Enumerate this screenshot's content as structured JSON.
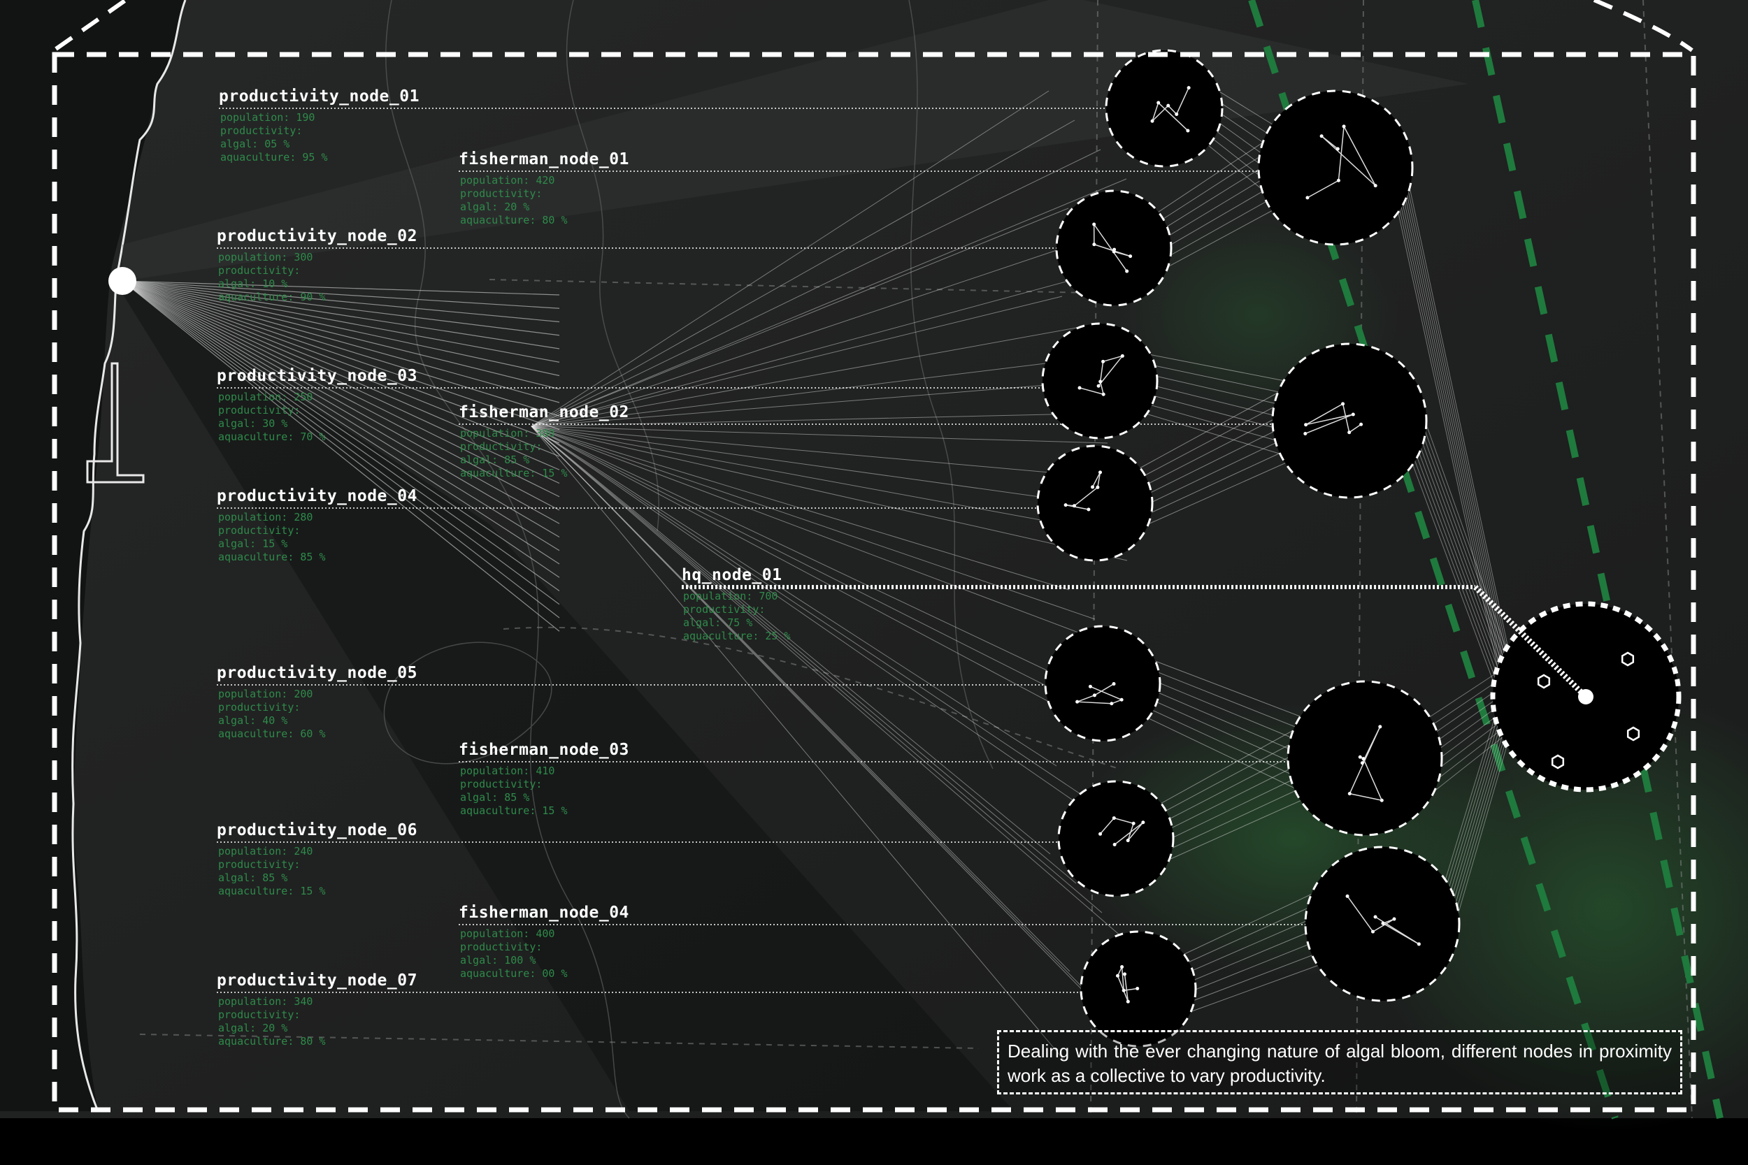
{
  "colors": {
    "background": "#000000",
    "map_dark": "#1e1f1f",
    "accent_green": "#1f7a3d",
    "stats_green": "#2e8b4a",
    "line_white": "#ffffff"
  },
  "productivity_nodes": [
    {
      "name": "productivity_node_01",
      "population": "population: 190",
      "productivity": "productivity:",
      "algal": "algal: 05 %",
      "aquaculture": "aquaculture: 95 %"
    },
    {
      "name": "productivity_node_02",
      "population": "population: 300",
      "productivity": "productivity:",
      "algal": "algal: 10 %",
      "aquaculture": "aquaculture: 90 %"
    },
    {
      "name": "productivity_node_03",
      "population": "population: 250",
      "productivity": "productivity:",
      "algal": "algal: 30 %",
      "aquaculture": "aquaculture: 70 %"
    },
    {
      "name": "productivity_node_04",
      "population": "population: 280",
      "productivity": "productivity:",
      "algal": "algal: 15 %",
      "aquaculture": "aquaculture: 85 %"
    },
    {
      "name": "productivity_node_05",
      "population": "population: 200",
      "productivity": "productivity:",
      "algal": "algal: 40 %",
      "aquaculture": "aquaculture: 60 %"
    },
    {
      "name": "productivity_node_06",
      "population": "population: 240",
      "productivity": "productivity:",
      "algal": "algal: 85 %",
      "aquaculture": "aquaculture: 15 %"
    },
    {
      "name": "productivity_node_07",
      "population": "population: 340",
      "productivity": "productivity:",
      "algal": "algal: 20 %",
      "aquaculture": "aquaculture: 80 %"
    }
  ],
  "fisherman_nodes": [
    {
      "name": "fisherman_node_01",
      "population": "population: 420",
      "productivity": "productivity:",
      "algal": "algal: 20 %",
      "aquaculture": "aquaculture: 80 %"
    },
    {
      "name": "fisherman_node_02",
      "population": "population: 380",
      "productivity": "productivity:",
      "algal": "algal: 85 %",
      "aquaculture": "aquaculture: 15 %"
    },
    {
      "name": "fisherman_node_03",
      "population": "population: 410",
      "productivity": "productivity:",
      "algal": "algal: 85 %",
      "aquaculture": "aquaculture: 15 %"
    },
    {
      "name": "fisherman_node_04",
      "population": "population: 400",
      "productivity": "productivity:",
      "algal": "algal: 100 %",
      "aquaculture": "aquaculture: 00 %"
    }
  ],
  "hq_node": {
    "name": "hq_node_01",
    "population": "population: 700",
    "productivity": "productivity:",
    "algal": "algal: 75 %",
    "aquaculture": "aquaculture: 25 %"
  },
  "caption": "Dealing with the ever changing nature of algal bloom, different nodes in proximity work as a collective to vary productivity."
}
